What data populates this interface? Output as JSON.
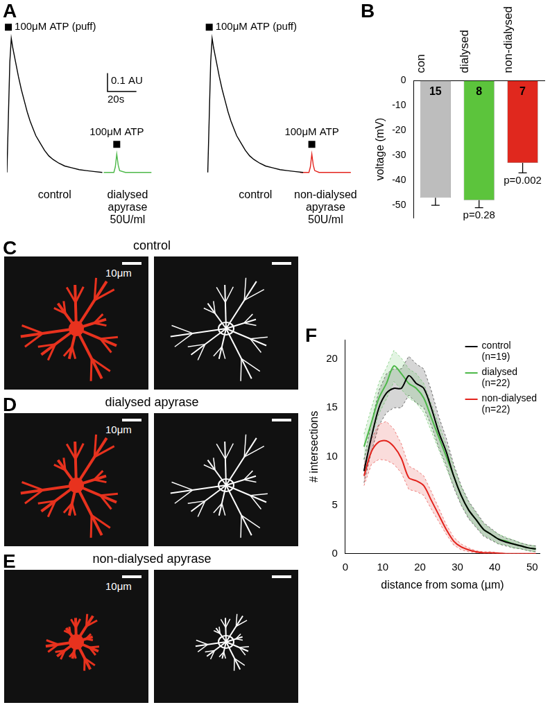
{
  "chart_data": [
    {
      "label": "A",
      "type": "line",
      "tick_labels": false,
      "grid": false,
      "xlim": [
        0,
        240
      ],
      "ylim": [
        -0.05,
        0.78
      ],
      "scale_bar": {
        "x": 20,
        "x_label": "20s",
        "y": 0.1,
        "y_label": "0.1 AU"
      },
      "series": [
        {
          "name": "control",
          "color": "#000000",
          "stimulus": "100μM ATP (puff)",
          "stimulus_x": 1,
          "x": [
            0,
            1,
            2,
            3,
            4,
            6,
            8,
            10,
            12,
            14,
            16,
            18,
            20,
            23,
            26,
            29,
            32,
            36,
            40,
            45,
            50,
            55,
            60,
            66
          ],
          "values": [
            0,
            0.3,
            0.6,
            0.73,
            0.68,
            0.6,
            0.52,
            0.45,
            0.39,
            0.33,
            0.28,
            0.24,
            0.2,
            0.16,
            0.12,
            0.09,
            0.07,
            0.05,
            0.035,
            0.025,
            0.015,
            0.01,
            0.005,
            0
          ]
        },
        {
          "name": "dialysed apyrase 50U/ml",
          "color": "#4cb848",
          "stimulus": "100μM ATP",
          "stimulus_x": 76,
          "x": [
            67,
            70,
            74,
            75,
            76,
            77,
            78,
            82,
            90,
            100
          ],
          "values": [
            0,
            0,
            0,
            0.03,
            0.1,
            0.04,
            0.01,
            0,
            0,
            0
          ]
        },
        {
          "name": "control",
          "color": "#000000",
          "stimulus": "100μM ATP (puff)",
          "stimulus_x": 140,
          "x": [
            139,
            140,
            141,
            142,
            143,
            145,
            147,
            149,
            151,
            153,
            155,
            157,
            159,
            162,
            165,
            168,
            171,
            175,
            179,
            184,
            189,
            194,
            199,
            205
          ],
          "values": [
            0,
            0.3,
            0.6,
            0.73,
            0.68,
            0.6,
            0.52,
            0.45,
            0.39,
            0.33,
            0.28,
            0.24,
            0.2,
            0.16,
            0.12,
            0.09,
            0.07,
            0.05,
            0.035,
            0.025,
            0.015,
            0.01,
            0.005,
            0
          ]
        },
        {
          "name": "non-dialysed apyrase 50U/ml",
          "color": "#e3231c",
          "stimulus": "100μM ATP",
          "stimulus_x": 211,
          "x": [
            203,
            206,
            209,
            210,
            211,
            212,
            213,
            216,
            225,
            238
          ],
          "values": [
            0,
            0,
            0,
            0.03,
            0.1,
            0.04,
            0.01,
            0,
            0,
            0
          ]
        }
      ]
    },
    {
      "label": "B",
      "type": "bar",
      "grid": false,
      "categories": [
        "con",
        "dialysed",
        "non-dialysed"
      ],
      "values": [
        -47,
        -48,
        -33
      ],
      "errors": [
        3,
        3,
        4
      ],
      "n": [
        15,
        8,
        7
      ],
      "p_labels": [
        null,
        "p=0.28",
        "p=0.002"
      ],
      "colors": [
        "#bdbdbd",
        "#5cc43c",
        "#e0281e"
      ],
      "ylabel": "voltage (mV)",
      "ylim": [
        -55,
        0
      ],
      "yticks": [
        0,
        -10,
        -20,
        -30,
        -40,
        -50
      ]
    },
    {
      "label": "F",
      "type": "line",
      "grid": false,
      "legend": "top right",
      "xlabel": "distance from soma (µm)",
      "ylabel": "# intersections",
      "xlim": [
        0,
        52
      ],
      "xticks": [
        0,
        10,
        20,
        30,
        40,
        50
      ],
      "ylim": [
        0,
        22
      ],
      "yticks": [
        0,
        5,
        10,
        15,
        20
      ],
      "x": [
        5,
        7,
        9,
        11,
        13,
        15,
        17,
        19,
        21,
        23,
        25,
        27,
        29,
        31,
        33,
        35,
        37,
        39,
        41,
        43,
        45,
        47,
        49,
        51
      ],
      "series": [
        {
          "name": "control (n=19)",
          "color": "#000000",
          "values": [
            8.5,
            12,
            15,
            16.5,
            17,
            17,
            18.3,
            17.5,
            17,
            15,
            12.5,
            10.5,
            8,
            6,
            4.5,
            3.5,
            2.5,
            2,
            1.5,
            1.2,
            1,
            0.8,
            0.6,
            0.5
          ],
          "errors": [
            1.2,
            1.5,
            1.8,
            2,
            2,
            2,
            2,
            2,
            2,
            1.8,
            1.6,
            1.4,
            1.2,
            1,
            0.9,
            0.8,
            0.7,
            0.6,
            0.5,
            0.4,
            0.4,
            0.3,
            0.3,
            0.3
          ]
        },
        {
          "name": "dialysed (n=22)",
          "color": "#4cb848",
          "values": [
            11,
            13.5,
            16,
            17.5,
            19.3,
            18.5,
            17.5,
            17,
            16,
            14,
            12,
            10,
            8,
            6,
            4.5,
            3.5,
            2.5,
            2,
            1.5,
            1.3,
            1,
            0.8,
            0.6,
            0.5
          ],
          "errors": [
            1.3,
            1.5,
            1.6,
            1.6,
            1.6,
            1.6,
            1.5,
            1.5,
            1.5,
            1.4,
            1.3,
            1.2,
            1,
            0.9,
            0.8,
            0.7,
            0.6,
            0.5,
            0.5,
            0.4,
            0.4,
            0.3,
            0.3,
            0.3
          ]
        },
        {
          "name": "non-dialysed (n=22)",
          "color": "#e3231c",
          "values": [
            8,
            10.5,
            11.5,
            11.6,
            11,
            9.8,
            7.8,
            7.5,
            7,
            5.5,
            4,
            2.5,
            1.3,
            0.7,
            0.4,
            0.2,
            0.1,
            0.1,
            0.05,
            0,
            0,
            0,
            0,
            0
          ],
          "errors": [
            1,
            1.3,
            1.8,
            2,
            1.8,
            1.5,
            1.2,
            1.1,
            1,
            0.9,
            0.7,
            0.5,
            0.4,
            0.3,
            0.2,
            0.1,
            0.1,
            0.1,
            0.05,
            0,
            0,
            0,
            0,
            0
          ]
        }
      ]
    }
  ],
  "images": [
    {
      "label": "C",
      "title": "control",
      "scale_bar": "10μm"
    },
    {
      "label": "D",
      "title": "dialysed apyrase",
      "scale_bar": "10μm"
    },
    {
      "label": "E",
      "title": "non-dialysed apyrase",
      "scale_bar": "10μm"
    }
  ]
}
